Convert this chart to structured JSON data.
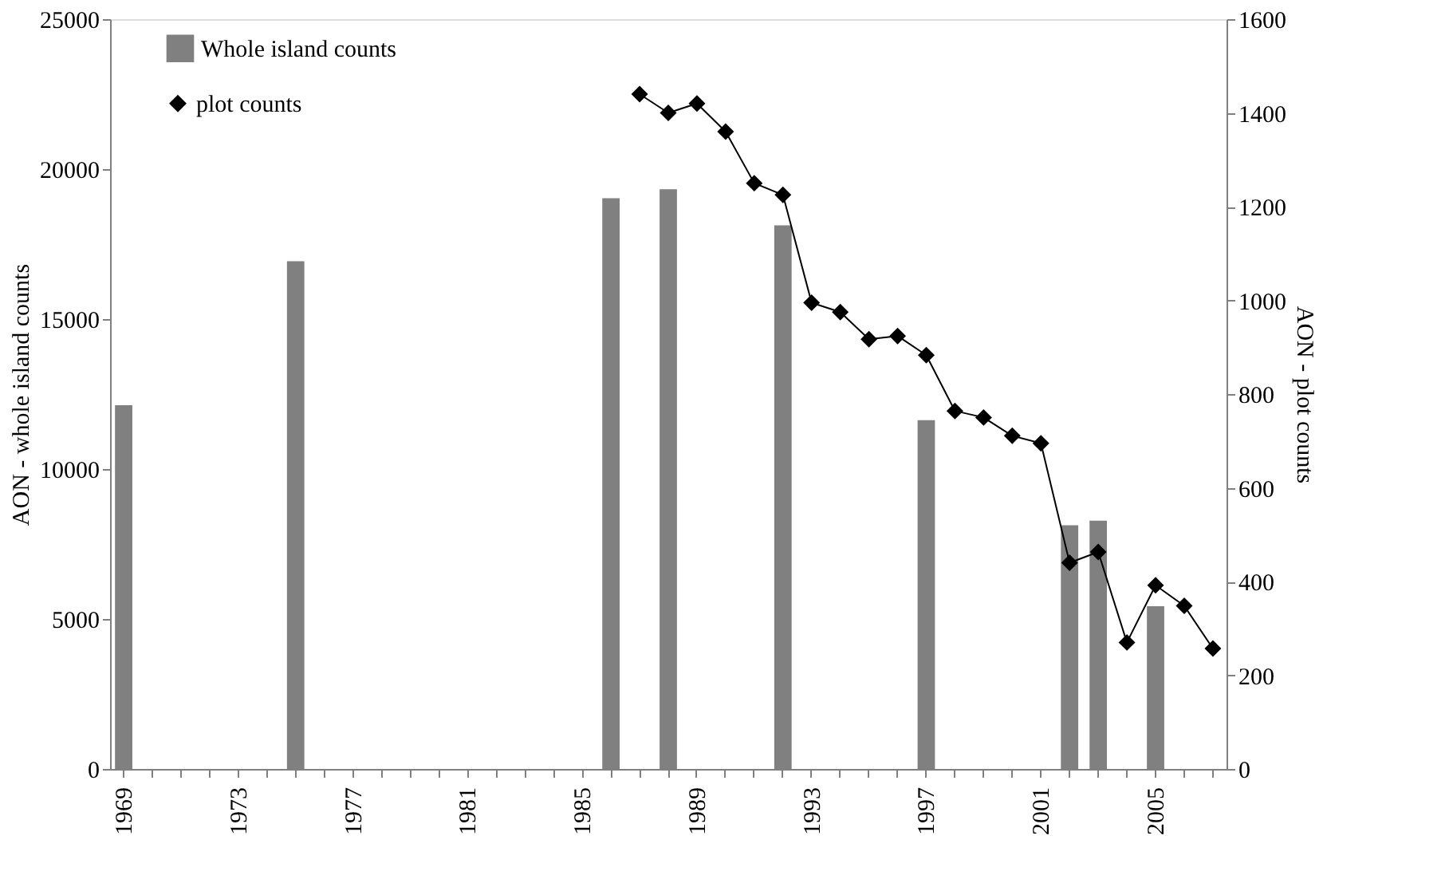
{
  "chart_data": {
    "type": "bar",
    "categories": [
      "1969",
      null,
      null,
      null,
      "1973",
      null,
      null,
      null,
      "1977",
      null,
      null,
      null,
      "1981",
      null,
      null,
      null,
      "1985",
      null,
      null,
      null,
      "1989",
      null,
      null,
      null,
      "1993",
      null,
      null,
      null,
      "1997",
      null,
      null,
      null,
      "2001",
      null,
      null,
      null,
      "2005",
      null,
      null
    ],
    "series": [
      {
        "name": "Whole island counts",
        "color": "#808080",
        "values": [
          12100,
          null,
          null,
          null,
          null,
          null,
          16900,
          null,
          null,
          null,
          null,
          null,
          null,
          null,
          null,
          null,
          null,
          19000,
          null,
          19300,
          null,
          null,
          null,
          18100,
          null,
          null,
          null,
          null,
          11600,
          null,
          null,
          null,
          null,
          8100,
          8250,
          null,
          5400,
          null,
          null
        ]
      },
      {
        "name": "plot counts",
        "type": "line",
        "axis": "y2",
        "color": "#000000",
        "marker": "diamond",
        "values": [
          null,
          null,
          null,
          null,
          null,
          null,
          null,
          null,
          null,
          null,
          null,
          null,
          null,
          null,
          null,
          null,
          null,
          null,
          1440,
          1400,
          1420,
          1360,
          1250,
          1225,
          995,
          975,
          917,
          924,
          883,
          764,
          750,
          711,
          695,
          440,
          463,
          270,
          392,
          348,
          257
        ]
      }
    ],
    "ylabel": "AON - whole island counts",
    "y2label": "AON - plot counts",
    "ylim": [
      0,
      25000
    ],
    "yticks": [
      0,
      5000,
      10000,
      15000,
      20000,
      25000
    ],
    "y2lim": [
      0,
      1600
    ],
    "y2ticks": [
      0,
      200,
      400,
      600,
      800,
      1000,
      1200,
      1400,
      1600
    ],
    "legend": "top left",
    "grid": false
  }
}
